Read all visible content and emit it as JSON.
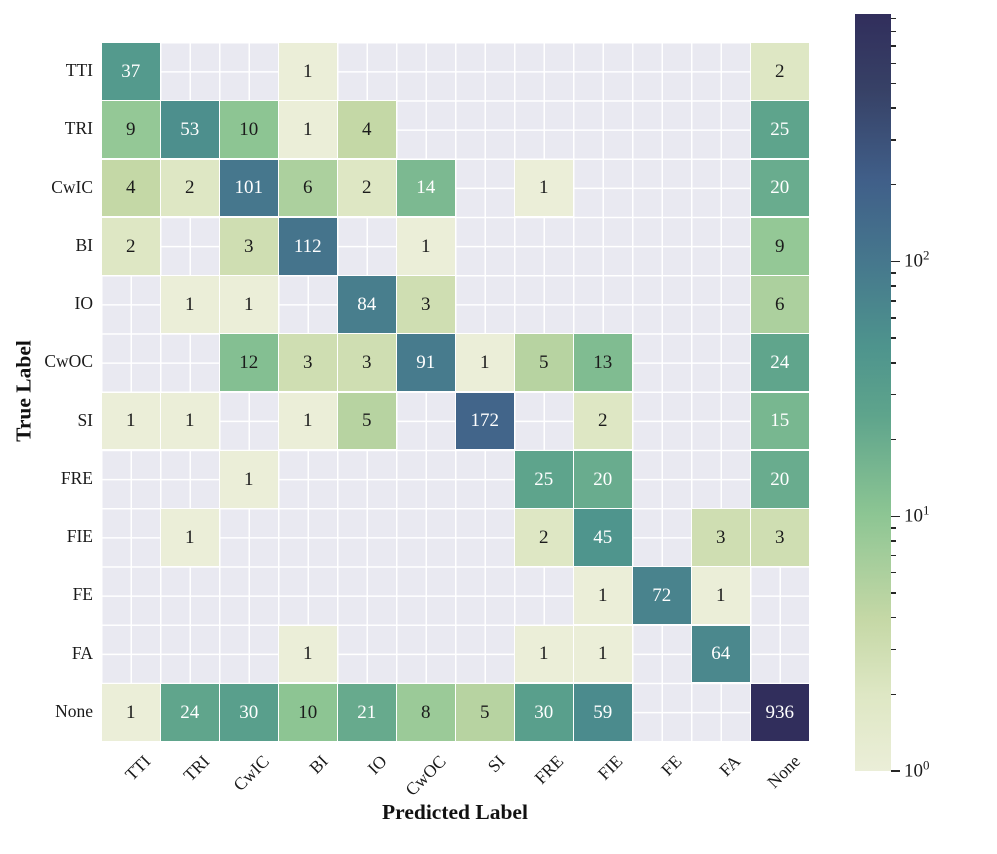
{
  "figure": {
    "xlabel": "Predicted Label",
    "ylabel": "True Label",
    "background_color": "#ffffff",
    "plot_background_color": "#e9e9f1",
    "grid_color": "#ffffff",
    "annotation_dark_text_color": "#1c1c1c",
    "annotation_light_text_color": "#ffffff"
  },
  "chart_data": {
    "type": "heatmap",
    "title": "",
    "xlabel": "Predicted Label",
    "ylabel": "True Label",
    "x_categories": [
      "TTI",
      "TRI",
      "CwIC",
      "BI",
      "IO",
      "CwOC",
      "SI",
      "FRE",
      "FIE",
      "FE",
      "FA",
      "None"
    ],
    "y_categories": [
      "TTI",
      "TRI",
      "CwIC",
      "BI",
      "IO",
      "CwOC",
      "SI",
      "FRE",
      "FIE",
      "FE",
      "FA",
      "None"
    ],
    "matrix": [
      [
        37,
        null,
        null,
        1,
        null,
        null,
        null,
        null,
        null,
        null,
        null,
        2
      ],
      [
        9,
        53,
        10,
        1,
        4,
        null,
        null,
        null,
        null,
        null,
        null,
        25
      ],
      [
        4,
        2,
        101,
        6,
        2,
        14,
        null,
        1,
        null,
        null,
        null,
        20
      ],
      [
        2,
        null,
        3,
        112,
        null,
        1,
        null,
        null,
        null,
        null,
        null,
        9
      ],
      [
        null,
        1,
        1,
        null,
        84,
        3,
        null,
        null,
        null,
        null,
        null,
        6
      ],
      [
        null,
        null,
        12,
        3,
        3,
        91,
        1,
        5,
        13,
        null,
        null,
        24
      ],
      [
        1,
        1,
        null,
        1,
        5,
        null,
        172,
        null,
        2,
        null,
        null,
        15
      ],
      [
        null,
        null,
        1,
        null,
        null,
        null,
        null,
        25,
        20,
        null,
        null,
        20
      ],
      [
        null,
        1,
        null,
        null,
        null,
        null,
        null,
        2,
        45,
        null,
        3,
        3
      ],
      [
        null,
        null,
        null,
        null,
        null,
        null,
        null,
        null,
        1,
        72,
        1,
        null
      ],
      [
        null,
        null,
        null,
        1,
        null,
        null,
        null,
        1,
        1,
        null,
        64,
        null
      ],
      [
        1,
        24,
        30,
        10,
        21,
        8,
        5,
        30,
        59,
        null,
        null,
        936
      ]
    ],
    "scale": "log",
    "vmin": 1,
    "vmax": 936,
    "white_text_min_value": 14,
    "grid": true,
    "legend_position": "right-colorbar",
    "colormap_stops": [
      [
        0.0,
        "#ebeed8"
      ],
      [
        0.1,
        "#dee7c4"
      ],
      [
        0.2,
        "#c5d8a6"
      ],
      [
        0.34,
        "#8cc593"
      ],
      [
        0.47,
        "#5ea48c"
      ],
      [
        0.56,
        "#4e948d"
      ],
      [
        0.67,
        "#46788d"
      ],
      [
        0.78,
        "#405f89"
      ],
      [
        0.9,
        "#374166"
      ],
      [
        1.0,
        "#312e5c"
      ]
    ],
    "colorbar_major_ticks": [
      {
        "value": 100,
        "label_base": "10",
        "label_exp": "2"
      },
      {
        "value": 10,
        "label_base": "10",
        "label_exp": "1"
      },
      {
        "value": 1,
        "label_base": "10",
        "label_exp": "0"
      }
    ],
    "colorbar_log_minor_ticks": true
  }
}
